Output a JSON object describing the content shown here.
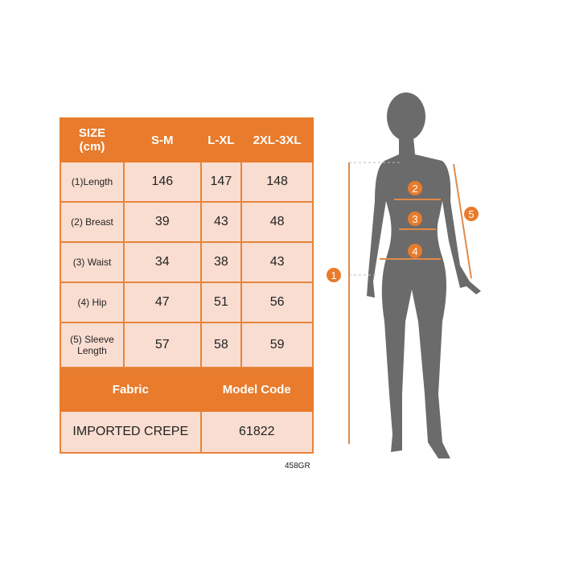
{
  "table": {
    "header": [
      "SIZE\n(cm)",
      "S-M",
      "L-XL",
      "2XL-3XL"
    ],
    "rows": [
      {
        "label": "(1)Length",
        "values": [
          "146",
          "147",
          "148"
        ]
      },
      {
        "label": "(2) Breast",
        "values": [
          "39",
          "43",
          "48"
        ]
      },
      {
        "label": "(3) Waist",
        "values": [
          "34",
          "38",
          "43"
        ]
      },
      {
        "label": "(4) Hip",
        "values": [
          "47",
          "51",
          "56"
        ]
      },
      {
        "label": "(5) Sleeve Length",
        "values": [
          "57",
          "58",
          "59"
        ]
      }
    ],
    "fabric_header": "Fabric",
    "model_header": "Model Code",
    "fabric_value": "IMPORTED CREPE",
    "model_value": "61822"
  },
  "product_code": "458GR",
  "markers": [
    "1",
    "2",
    "3",
    "4",
    "5"
  ],
  "colors": {
    "accent": "#e87b2c",
    "cell": "#f9ddd1",
    "silhouette": "#6b6b6b"
  }
}
